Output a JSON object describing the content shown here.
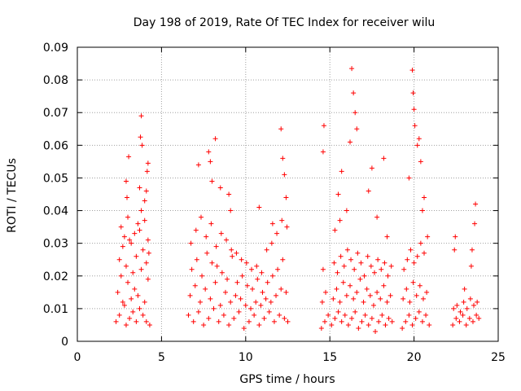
{
  "chart_data": {
    "type": "scatter",
    "title": "Day 198 of 2019, Rate Of TEC Index for receiver wilu",
    "xlabel": "GPS time / hours",
    "ylabel": "ROTI / TECUs",
    "xlim": [
      0,
      25
    ],
    "ylim": [
      0,
      0.09
    ],
    "x_ticks": [
      "0",
      "5",
      "10",
      "15",
      "20",
      "25"
    ],
    "y_ticks": [
      "0",
      "0.01",
      "0.02",
      "0.03",
      "0.04",
      "0.05",
      "0.06",
      "0.07",
      "0.08",
      "0.09"
    ],
    "grid": true,
    "marker": "plus",
    "color": "#ff0000",
    "series": [
      {
        "x": [
          2.3,
          2.5,
          2.7,
          2.9,
          3.1,
          3.3,
          3.5,
          3.7,
          3.9,
          4.1,
          4.3,
          2.4,
          2.6,
          2.8,
          3.0,
          3.2,
          3.4,
          3.6,
          3.8,
          4.0,
          4.2,
          2.5,
          2.7,
          2.9,
          3.1,
          3.3,
          3.5,
          3.7,
          3.9,
          4.1,
          4.25,
          2.6,
          2.8,
          3.0,
          3.2,
          3.4,
          3.6,
          3.8,
          4.0,
          4.2,
          2.9,
          3.05,
          3.75,
          3.8,
          3.85,
          4.1,
          4.15,
          4.2,
          2.95,
          3.7,
          4.0
        ],
        "y": [
          0.006,
          0.008,
          0.012,
          0.005,
          0.007,
          0.009,
          0.006,
          0.01,
          0.008,
          0.006,
          0.005,
          0.015,
          0.02,
          0.011,
          0.018,
          0.013,
          0.016,
          0.014,
          0.022,
          0.012,
          0.019,
          0.025,
          0.029,
          0.023,
          0.031,
          0.021,
          0.026,
          0.034,
          0.028,
          0.024,
          0.027,
          0.035,
          0.032,
          0.038,
          0.03,
          0.033,
          0.036,
          0.04,
          0.037,
          0.031,
          0.049,
          0.0565,
          0.0625,
          0.069,
          0.06,
          0.046,
          0.052,
          0.0545,
          0.044,
          0.047,
          0.043
        ]
      },
      {
        "x": [
          6.6,
          6.9,
          7.2,
          7.5,
          7.8,
          8.1,
          8.4,
          8.7,
          9.0,
          9.3,
          9.6,
          9.9,
          10.2,
          10.5,
          10.8,
          11.1,
          11.4,
          11.7,
          12.0,
          12.3,
          12.5,
          6.7,
          7.0,
          7.3,
          7.6,
          7.9,
          8.2,
          8.5,
          8.8,
          9.1,
          9.4,
          9.7,
          10.0,
          10.3,
          10.6,
          10.9,
          11.2,
          11.5,
          11.8,
          12.1,
          12.4,
          6.8,
          7.1,
          7.4,
          7.7,
          8.0,
          8.3,
          8.6,
          8.9,
          9.2,
          9.5,
          9.8,
          10.1,
          10.4,
          10.7,
          11.0,
          11.3,
          11.6,
          11.9,
          12.2,
          6.75,
          7.05,
          7.35,
          7.65,
          7.95,
          8.25,
          8.55,
          8.85,
          9.15,
          9.45,
          9.75,
          10.05,
          10.35,
          10.65,
          10.95,
          11.25,
          11.55,
          11.85,
          12.15,
          12.45,
          7.8,
          7.9,
          8.0,
          8.2,
          8.5,
          9.0,
          9.1,
          12.1,
          12.2,
          12.3,
          12.4,
          11.6,
          10.8,
          7.2
        ],
        "y": [
          0.008,
          0.006,
          0.009,
          0.005,
          0.007,
          0.01,
          0.006,
          0.008,
          0.005,
          0.007,
          0.009,
          0.004,
          0.006,
          0.008,
          0.005,
          0.007,
          0.009,
          0.006,
          0.008,
          0.007,
          0.006,
          0.014,
          0.017,
          0.012,
          0.016,
          0.013,
          0.018,
          0.011,
          0.015,
          0.012,
          0.014,
          0.013,
          0.011,
          0.01,
          0.012,
          0.011,
          0.013,
          0.012,
          0.014,
          0.016,
          0.015,
          0.022,
          0.025,
          0.02,
          0.027,
          0.024,
          0.023,
          0.021,
          0.019,
          0.026,
          0.018,
          0.02,
          0.017,
          0.016,
          0.019,
          0.015,
          0.018,
          0.02,
          0.022,
          0.025,
          0.03,
          0.034,
          0.038,
          0.032,
          0.036,
          0.029,
          0.033,
          0.031,
          0.028,
          0.027,
          0.025,
          0.024,
          0.022,
          0.023,
          0.021,
          0.028,
          0.03,
          0.033,
          0.037,
          0.035,
          0.058,
          0.055,
          0.049,
          0.062,
          0.047,
          0.045,
          0.04,
          0.065,
          0.056,
          0.051,
          0.044,
          0.036,
          0.041,
          0.054
        ]
      },
      {
        "x": [
          14.5,
          14.7,
          14.9,
          15.1,
          15.3,
          15.5,
          15.7,
          15.9,
          16.1,
          16.3,
          16.5,
          16.7,
          16.9,
          17.1,
          17.3,
          17.5,
          17.7,
          17.9,
          18.1,
          18.3,
          18.5,
          18.7,
          14.55,
          14.75,
          15.2,
          15.4,
          15.6,
          15.8,
          16.0,
          16.2,
          16.4,
          16.6,
          16.8,
          17.0,
          17.2,
          17.4,
          17.6,
          17.8,
          18.0,
          18.2,
          18.4,
          18.6,
          14.6,
          15.25,
          15.45,
          15.65,
          15.85,
          16.05,
          16.25,
          16.45,
          16.65,
          16.85,
          17.05,
          17.25,
          17.45,
          17.65,
          17.85,
          18.05,
          18.25,
          18.45,
          18.65,
          15.3,
          15.5,
          15.7,
          16.0,
          16.2,
          16.3,
          16.4,
          16.5,
          16.6,
          17.3,
          17.5,
          17.8,
          18.2,
          18.4,
          14.65,
          14.6,
          15.6
        ],
        "y": [
          0.004,
          0.006,
          0.008,
          0.005,
          0.007,
          0.009,
          0.006,
          0.008,
          0.005,
          0.007,
          0.009,
          0.004,
          0.006,
          0.008,
          0.005,
          0.007,
          0.003,
          0.006,
          0.008,
          0.005,
          0.007,
          0.006,
          0.012,
          0.015,
          0.013,
          0.016,
          0.012,
          0.018,
          0.014,
          0.017,
          0.013,
          0.015,
          0.019,
          0.012,
          0.016,
          0.014,
          0.011,
          0.015,
          0.013,
          0.017,
          0.012,
          0.014,
          0.022,
          0.024,
          0.021,
          0.026,
          0.023,
          0.028,
          0.025,
          0.022,
          0.027,
          0.024,
          0.02,
          0.026,
          0.023,
          0.021,
          0.025,
          0.022,
          0.024,
          0.02,
          0.023,
          0.034,
          0.045,
          0.052,
          0.04,
          0.061,
          0.0835,
          0.076,
          0.07,
          0.065,
          0.046,
          0.053,
          0.038,
          0.056,
          0.032,
          0.066,
          0.058,
          0.037
        ]
      },
      {
        "x": [
          19.3,
          19.5,
          19.7,
          19.9,
          20.1,
          20.3,
          20.5,
          20.7,
          20.9,
          19.35,
          19.55,
          19.75,
          19.95,
          20.15,
          20.35,
          20.55,
          20.75,
          19.4,
          19.6,
          19.8,
          20.0,
          20.2,
          20.4,
          20.6,
          20.8,
          19.9,
          19.95,
          20.0,
          20.05,
          20.2,
          20.3,
          20.4,
          19.7,
          20.6,
          20.5
        ],
        "y": [
          0.004,
          0.006,
          0.008,
          0.005,
          0.007,
          0.009,
          0.006,
          0.008,
          0.005,
          0.013,
          0.016,
          0.012,
          0.018,
          0.014,
          0.017,
          0.013,
          0.015,
          0.022,
          0.025,
          0.028,
          0.024,
          0.026,
          0.03,
          0.027,
          0.032,
          0.083,
          0.076,
          0.071,
          0.066,
          0.06,
          0.062,
          0.055,
          0.05,
          0.044,
          0.04
        ]
      },
      {
        "x": [
          22.3,
          22.5,
          22.7,
          22.9,
          23.1,
          23.3,
          23.5,
          23.7,
          23.85,
          22.35,
          22.55,
          22.75,
          22.95,
          23.15,
          23.35,
          23.55,
          23.75,
          22.4,
          22.45,
          23.4,
          23.45,
          23.6,
          23.65,
          23.0
        ],
        "y": [
          0.005,
          0.007,
          0.006,
          0.008,
          0.005,
          0.007,
          0.006,
          0.008,
          0.007,
          0.01,
          0.011,
          0.009,
          0.012,
          0.01,
          0.013,
          0.011,
          0.012,
          0.028,
          0.032,
          0.023,
          0.028,
          0.036,
          0.042,
          0.016
        ]
      }
    ]
  }
}
